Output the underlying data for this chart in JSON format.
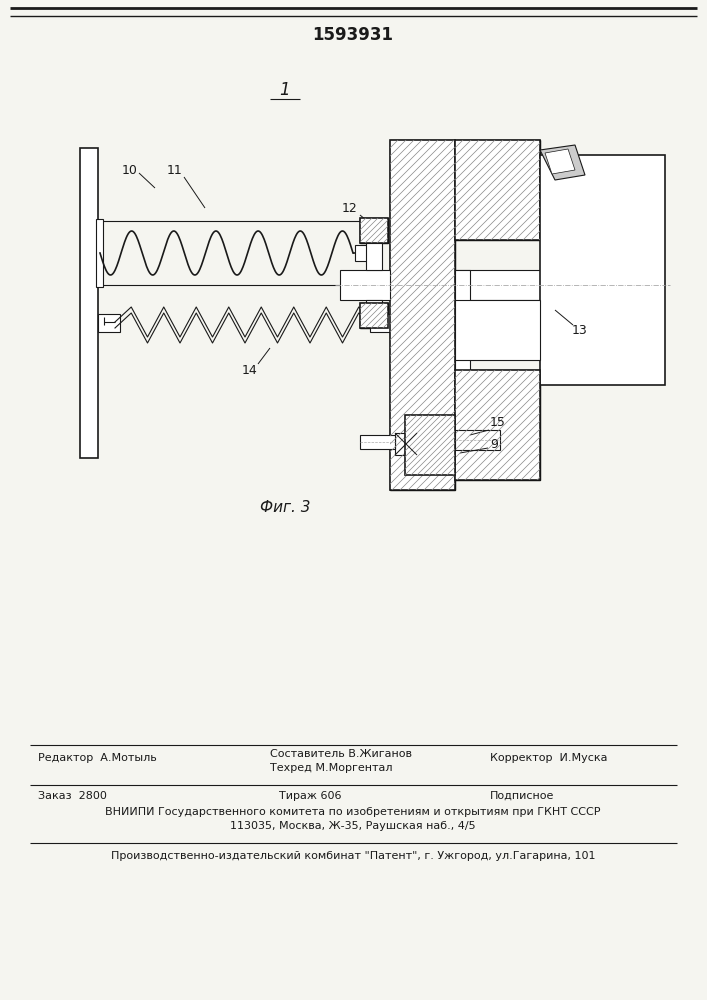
{
  "patent_number": "1593931",
  "fig_label": "Фиг. 3",
  "figure_number_label": "1",
  "editor_line": "Редактор  А.Мотыль",
  "composer_line1": "Составитель В.Жиганов",
  "composer_line2": "Техред М.Моргентал",
  "corrector_line": "Корректор  И.Муска",
  "order_line": "Заказ  2800",
  "print_line": "Тираж 606",
  "subscription_line": "Подписное",
  "vniipи_line": "ВНИИПИ Государственного комитета по изобретениям и открытиям при ГКНТ СССР",
  "address_line": "113035, Москва, Ж-35, Раушская наб., 4/5",
  "production_line": "Производственно-издательский комбинат \"Патент\", г. Ужгород, ул.Гагарина, 101",
  "bg_color": "#f5f5f0",
  "drawing_color": "#1a1a1a",
  "hatch_color": "#555555"
}
